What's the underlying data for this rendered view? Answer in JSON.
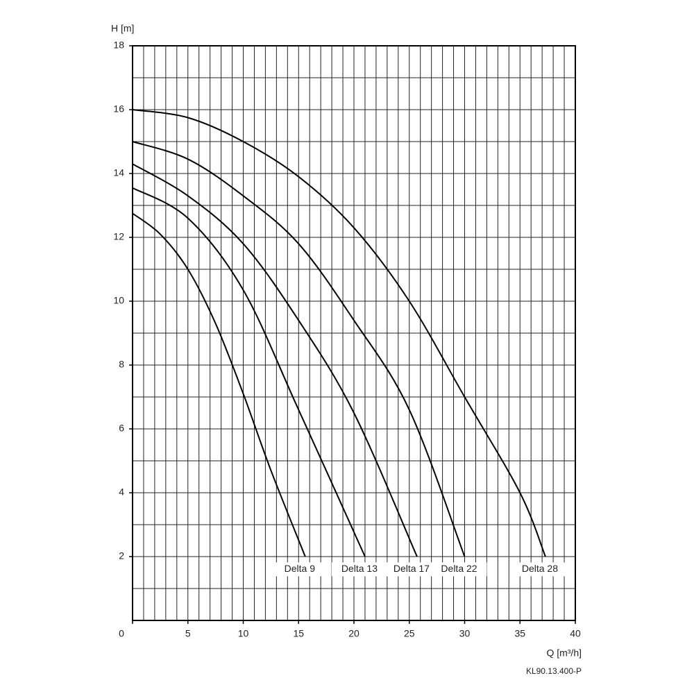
{
  "chart_data": {
    "type": "line",
    "ylabel": "H [m]",
    "xlabel": "Q [m³/h]",
    "footnote": "KL90.13.400-P",
    "xlim": [
      0,
      40
    ],
    "ylim": [
      0,
      18
    ],
    "xticks": [
      0,
      5,
      10,
      15,
      20,
      25,
      30,
      35,
      40
    ],
    "yticks": [
      2,
      4,
      6,
      8,
      10,
      12,
      14,
      16,
      18
    ],
    "xgrid": [
      0,
      1,
      2,
      3,
      4,
      5,
      6,
      7,
      8,
      9,
      10,
      11,
      12,
      13,
      14,
      15,
      16,
      17,
      18,
      19,
      20,
      21,
      22,
      23,
      24,
      25,
      26,
      27,
      28,
      29,
      30,
      31,
      32,
      33,
      34,
      35,
      36,
      37,
      38,
      39,
      40
    ],
    "ygrid": [
      0,
      1,
      2,
      3,
      4,
      5,
      6,
      7,
      8,
      9,
      10,
      11,
      12,
      13,
      14,
      15,
      16,
      17,
      18
    ],
    "grid": true,
    "label_y": 1.6,
    "series": [
      {
        "name": "Delta 9",
        "color": "#000000",
        "x": [
          0,
          2.5,
          5,
          7.5,
          10,
          12.5,
          15.6
        ],
        "values": [
          12.75,
          12.1,
          11.0,
          9.3,
          7.1,
          4.7,
          2
        ]
      },
      {
        "name": "Delta 13",
        "color": "#000000",
        "x": [
          0,
          5,
          10,
          15,
          21
        ],
        "values": [
          13.55,
          12.6,
          10.35,
          6.6,
          2
        ]
      },
      {
        "name": "Delta 17",
        "color": "#000000",
        "x": [
          0,
          5,
          10,
          15,
          20,
          25.7
        ],
        "values": [
          14.3,
          13.3,
          11.8,
          9.4,
          6.5,
          2
        ]
      },
      {
        "name": "Delta 22",
        "color": "#000000",
        "x": [
          0,
          5,
          10,
          15,
          20,
          25,
          30
        ],
        "values": [
          15,
          14.45,
          13.3,
          11.8,
          9.4,
          6.6,
          2
        ]
      },
      {
        "name": "Delta 28",
        "color": "#000000",
        "x": [
          0,
          5,
          10,
          15,
          20,
          25,
          30,
          35,
          37.3
        ],
        "values": [
          16,
          15.75,
          15.0,
          13.9,
          12.3,
          10.0,
          7.0,
          4.0,
          2
        ]
      }
    ]
  }
}
